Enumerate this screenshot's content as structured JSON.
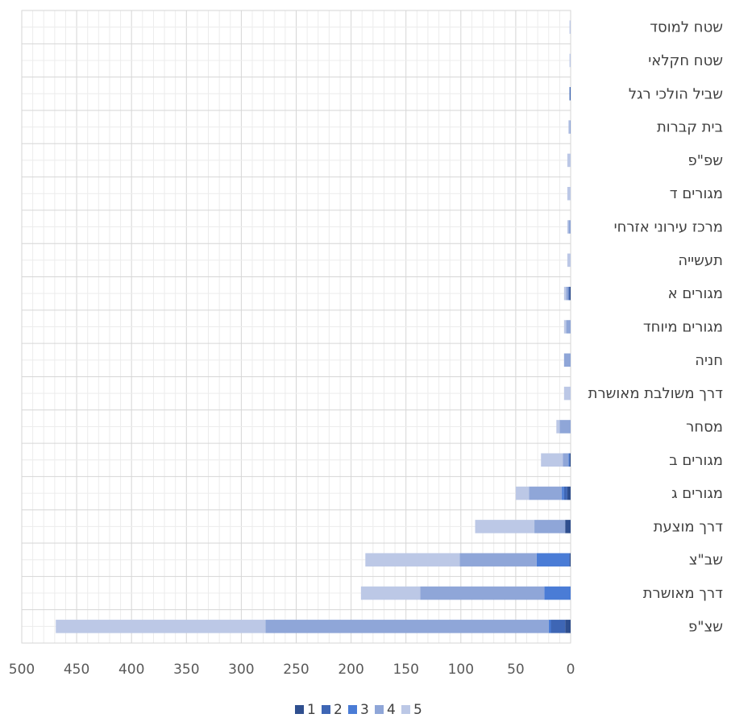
{
  "chart_data": {
    "type": "bar",
    "orientation": "horizontal",
    "stacked": true,
    "x_reversed": true,
    "title": "",
    "xlabel": "",
    "ylabel": "",
    "xlim": [
      0,
      500
    ],
    "xticks": [
      "0",
      "50",
      "100",
      "150",
      "200",
      "250",
      "300",
      "350",
      "400",
      "450",
      "500"
    ],
    "grid": "major and minor",
    "legend_position": "bottom",
    "categories": [
      "שטח למוסד",
      "שטח חקלאי",
      "שביל הולכי רגל",
      "בית קברות",
      "שפ\"פ",
      "מגורים ד",
      "מרכז עירוני אזרחי",
      "תעשייה",
      "מגורים א",
      "מגורים מיוחד",
      "חניה",
      "דרך משולבת מאושרת",
      "מסחר",
      "מגורים ב",
      "מגורים ג",
      "דרך מוצעת",
      "שב\"צ",
      "דרך מאושרת",
      "שצ\"פ"
    ],
    "series": [
      {
        "name": "1",
        "color": "#2F4F8F",
        "values": [
          0,
          0,
          0,
          0,
          0,
          0,
          0,
          0,
          1,
          0,
          0,
          0,
          0,
          1,
          3,
          5,
          1,
          0,
          5
        ]
      },
      {
        "name": "2",
        "color": "#3E66B5",
        "values": [
          0,
          0,
          1,
          0,
          0,
          0,
          0,
          0,
          1,
          0,
          0,
          0,
          0,
          0,
          3,
          0,
          0,
          0,
          13
        ]
      },
      {
        "name": "3",
        "color": "#4A7CD6",
        "values": [
          0,
          0,
          0,
          0,
          0,
          0,
          0,
          0,
          0,
          0,
          0,
          0,
          0,
          1,
          2,
          0,
          30,
          24,
          2
        ]
      },
      {
        "name": "4",
        "color": "#8FA6D8",
        "values": [
          0,
          0,
          0,
          1,
          0,
          0,
          2,
          0,
          2,
          4,
          6,
          0,
          10,
          5,
          30,
          28,
          70,
          113,
          258
        ]
      },
      {
        "name": "5",
        "color": "#BCC8E6",
        "values": [
          1,
          1,
          0,
          1,
          3,
          3,
          1,
          3,
          2,
          2,
          0,
          6,
          3,
          20,
          12,
          54,
          86,
          54,
          191
        ]
      }
    ]
  }
}
